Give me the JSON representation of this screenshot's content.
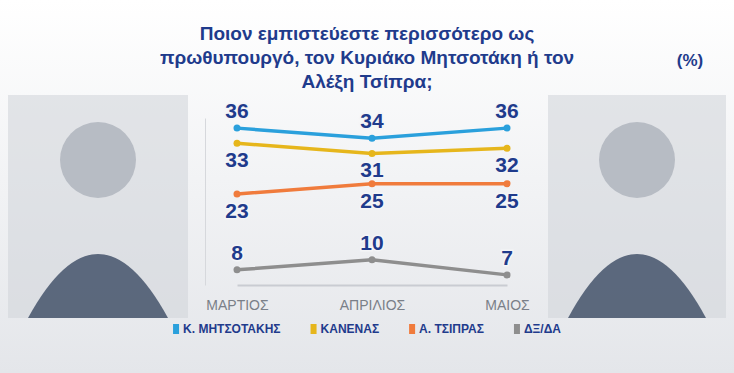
{
  "chart_data": {
    "type": "line",
    "title": "Ποιον εμπιστεύεστε περισσότερο ως πρωθυπουργό, τον Κυριάκο Μητσοτάκη ή τον Αλέξη Τσίπρα;",
    "ylabel": "(%)",
    "categories": [
      "ΜΑΡΤΙΟΣ",
      "ΑΠΡΙΛΙΟΣ",
      "ΜΑΙΟΣ"
    ],
    "series": [
      {
        "name": "Κ. ΜΗΤΣΟΤΑΚΗΣ",
        "color": "#2aa0dc",
        "values": [
          36,
          34,
          36
        ]
      },
      {
        "name": "ΚΑΝΕΝΑΣ",
        "color": "#e6b61c",
        "values": [
          33,
          31,
          32
        ]
      },
      {
        "name": "Α. ΤΣΙΠΡΑΣ",
        "color": "#f07b3c",
        "values": [
          23,
          25,
          25
        ]
      },
      {
        "name": "ΔΞ/ΔΑ",
        "color": "#8e8e8e",
        "values": [
          8,
          10,
          7
        ]
      }
    ],
    "ylim": [
      5,
      38
    ],
    "data_labels": true,
    "tick_labels": "x",
    "marker": "circle",
    "legend": "bottom"
  }
}
